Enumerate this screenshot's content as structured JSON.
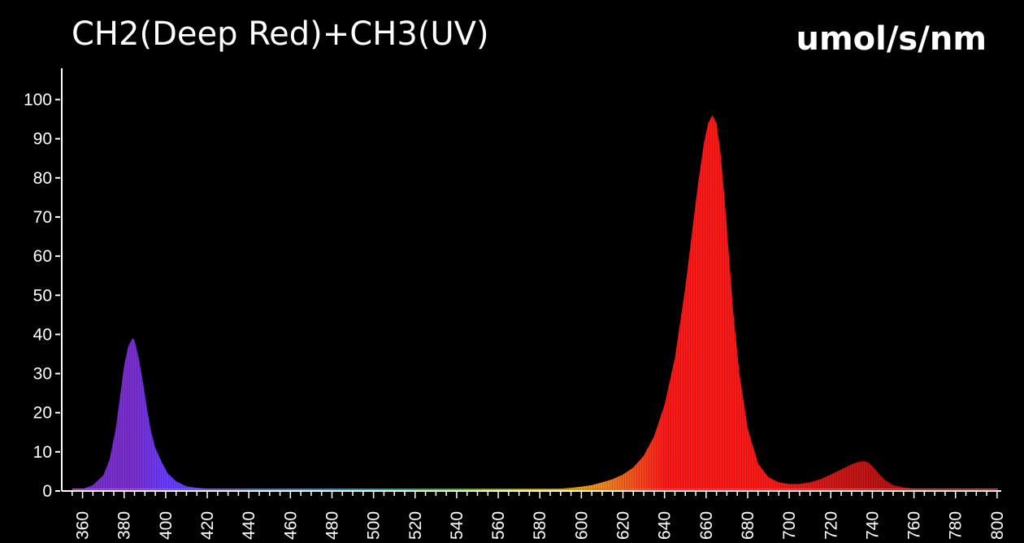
{
  "header": {
    "title": "CH2(Deep Red)+CH3(UV)",
    "unit": "umol/s/nm"
  },
  "chart_data": {
    "type": "area",
    "title": "CH2(Deep Red)+CH3(UV)",
    "ylabel": "umol/s/nm",
    "xlabel": "",
    "xlim": [
      350,
      802
    ],
    "ylim": [
      0,
      108
    ],
    "x_ticks": [
      360,
      380,
      400,
      420,
      440,
      460,
      480,
      500,
      520,
      540,
      560,
      580,
      600,
      620,
      640,
      660,
      680,
      700,
      720,
      740,
      760,
      780,
      800
    ],
    "y_ticks": [
      0,
      10,
      20,
      30,
      40,
      50,
      60,
      70,
      80,
      90,
      100
    ],
    "grid": false,
    "fill": "spectral",
    "series": [
      {
        "x": [
          355,
          360,
          365,
          370,
          373,
          376,
          378,
          380,
          382,
          384,
          385,
          387,
          389,
          391,
          393,
          395,
          398,
          401,
          405,
          410,
          415,
          420,
          430,
          440,
          460,
          500,
          550,
          580,
          590,
          595,
          600,
          605,
          610,
          615,
          620,
          625,
          630,
          635,
          640,
          645,
          650,
          653,
          656,
          659,
          661,
          663,
          665,
          667,
          669,
          671,
          673,
          676,
          680,
          685,
          690,
          695,
          700,
          705,
          710,
          715,
          720,
          725,
          730,
          733,
          736,
          738,
          740,
          743,
          746,
          750,
          755,
          760,
          770,
          780,
          790,
          800
        ],
        "y": [
          0.5,
          0.5,
          1.5,
          4,
          8,
          16,
          24,
          32,
          37,
          39,
          38.5,
          34,
          28,
          21,
          15,
          11,
          7.5,
          4.5,
          2.5,
          1.2,
          0.8,
          0.6,
          0.5,
          0.5,
          0.5,
          0.5,
          0.5,
          0.5,
          0.6,
          0.8,
          1.1,
          1.5,
          2.2,
          3,
          4.2,
          6,
          9,
          14,
          22,
          34,
          52,
          65,
          78,
          89,
          94,
          96,
          94,
          86,
          74,
          60,
          46,
          30,
          16,
          7,
          3.5,
          2.2,
          1.8,
          1.8,
          2.2,
          3,
          4.2,
          5.5,
          6.8,
          7.4,
          7.6,
          7.3,
          6.3,
          4.5,
          2.8,
          1.5,
          0.9,
          0.6,
          0.5,
          0.5,
          0.5,
          0.5
        ]
      }
    ],
    "colors": {
      "uv": "#7a2fd0",
      "violet": "#6a3cff",
      "orange": "#f08a20",
      "red": "#ff1a1a",
      "deep_red": "#b01010",
      "axis": "#ffffff"
    }
  }
}
